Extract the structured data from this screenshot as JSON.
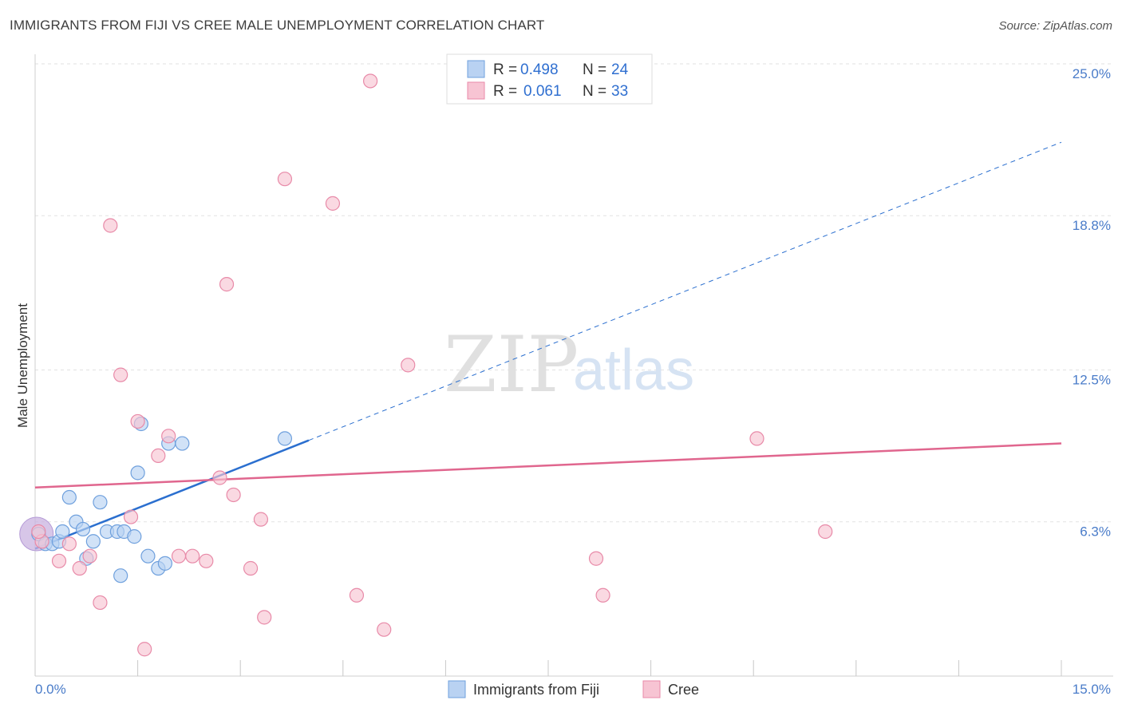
{
  "header": {
    "title": "IMMIGRANTS FROM FIJI VS CREE MALE UNEMPLOYMENT CORRELATION CHART",
    "source": "Source: ZipAtlas.com"
  },
  "watermark": {
    "zip": "ZIP",
    "atlas": "atlas"
  },
  "chart_data": {
    "type": "scatter",
    "ylabel": "Male Unemployment",
    "xlim": [
      0,
      15
    ],
    "ylim": [
      0,
      25
    ],
    "x_tick_labels": [
      "0.0%",
      "15.0%"
    ],
    "y_ticks": [
      {
        "value": 6.3,
        "label": "6.3%"
      },
      {
        "value": 12.5,
        "label": "12.5%"
      },
      {
        "value": 18.8,
        "label": "18.8%"
      },
      {
        "value": 25.0,
        "label": "25.0%"
      }
    ],
    "legend": [
      {
        "r_label": "R =",
        "r_value": "0.498",
        "n_label": "N =",
        "n_value": "24"
      },
      {
        "r_label": "R =",
        "r_value": "0.061",
        "n_label": "N =",
        "n_value": "33"
      }
    ],
    "series": [
      {
        "name": "Immigrants from Fiji",
        "color": "#6fa0dd",
        "fill": "#b9d2f2",
        "line_color": "#2b6fcf",
        "points": [
          [
            0.05,
            5.8
          ],
          [
            0.15,
            5.4
          ],
          [
            0.25,
            5.4
          ],
          [
            0.35,
            5.5
          ],
          [
            0.4,
            5.9
          ],
          [
            0.5,
            7.3
          ],
          [
            0.6,
            6.3
          ],
          [
            0.7,
            6.0
          ],
          [
            0.75,
            4.8
          ],
          [
            0.85,
            5.5
          ],
          [
            0.95,
            7.1
          ],
          [
            1.05,
            5.9
          ],
          [
            1.2,
            5.9
          ],
          [
            1.25,
            4.1
          ],
          [
            1.3,
            5.9
          ],
          [
            1.45,
            5.7
          ],
          [
            1.5,
            8.3
          ],
          [
            1.55,
            10.3
          ],
          [
            1.65,
            4.9
          ],
          [
            1.8,
            4.4
          ],
          [
            1.9,
            4.6
          ],
          [
            1.95,
            9.5
          ],
          [
            2.15,
            9.5
          ],
          [
            3.65,
            9.7
          ]
        ],
        "trend": {
          "x0": 0.0,
          "y0": 5.2,
          "x1": 15.0,
          "y1": 21.8,
          "solid_until": 4.0
        }
      },
      {
        "name": "Cree",
        "color": "#e88aa8",
        "fill": "#f7c4d3",
        "line_color": "#e0668e",
        "points": [
          [
            0.1,
            5.5
          ],
          [
            0.35,
            4.7
          ],
          [
            0.5,
            5.4
          ],
          [
            0.65,
            4.4
          ],
          [
            0.8,
            4.9
          ],
          [
            0.95,
            3.0
          ],
          [
            1.1,
            18.4
          ],
          [
            1.25,
            12.3
          ],
          [
            1.4,
            6.5
          ],
          [
            1.5,
            10.4
          ],
          [
            1.6,
            1.1
          ],
          [
            1.8,
            9.0
          ],
          [
            1.95,
            9.8
          ],
          [
            2.1,
            4.9
          ],
          [
            2.3,
            4.9
          ],
          [
            2.5,
            4.7
          ],
          [
            2.7,
            8.1
          ],
          [
            2.8,
            16.0
          ],
          [
            2.9,
            7.4
          ],
          [
            3.15,
            4.4
          ],
          [
            3.3,
            6.4
          ],
          [
            3.35,
            2.4
          ],
          [
            3.65,
            20.3
          ],
          [
            4.35,
            19.3
          ],
          [
            4.7,
            3.3
          ],
          [
            4.9,
            24.3
          ],
          [
            5.1,
            1.9
          ],
          [
            5.45,
            12.7
          ],
          [
            8.2,
            4.8
          ],
          [
            8.3,
            3.3
          ],
          [
            10.55,
            9.7
          ],
          [
            11.55,
            5.9
          ],
          [
            0.05,
            5.9
          ]
        ],
        "trend": {
          "x0": 0.0,
          "y0": 7.7,
          "x1": 15.0,
          "y1": 9.5
        }
      }
    ]
  }
}
